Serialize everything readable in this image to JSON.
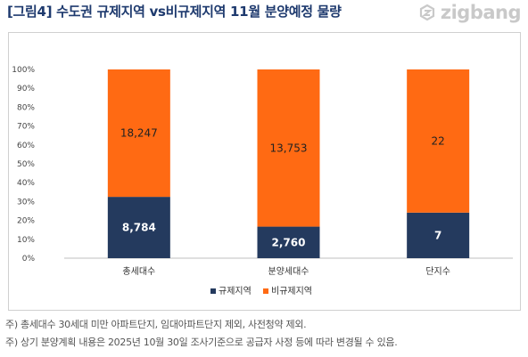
{
  "title": "[그림4] 수도권 규제지역 vs비규제지역 11월 분양예정 물량",
  "brand": {
    "name": "zigbang",
    "icon": "zigbang-logo-icon",
    "color": "#c9c9c9"
  },
  "notes": [
    "주) 총세대수 30세대 미만 아파트단지, 임대아파트단지 제외, 사전청약 제외.",
    "주) 상기 분양계획 내용은 2025년 10월 30일 조사기준으로 공급자 사정 등에 따라 변경될 수 있음."
  ],
  "chart_data": {
    "type": "bar",
    "stacked": "percent",
    "categories": [
      "총세대수",
      "분양세대수",
      "단지수"
    ],
    "series": [
      {
        "name": "규제지역",
        "color": "#243a5e",
        "values": [
          8784,
          2760,
          7
        ],
        "labels": [
          "8,784",
          "2,760",
          "7"
        ]
      },
      {
        "name": "비규제지역",
        "color": "#ff6a13",
        "values": [
          18247,
          13753,
          22
        ],
        "labels": [
          "18,247",
          "13,753",
          "22"
        ]
      }
    ],
    "yticks": [
      "0%",
      "10%",
      "20%",
      "30%",
      "40%",
      "50%",
      "60%",
      "70%",
      "80%",
      "90%",
      "100%"
    ],
    "ylim": [
      0,
      100
    ],
    "grid": false,
    "legend_position": "bottom"
  }
}
